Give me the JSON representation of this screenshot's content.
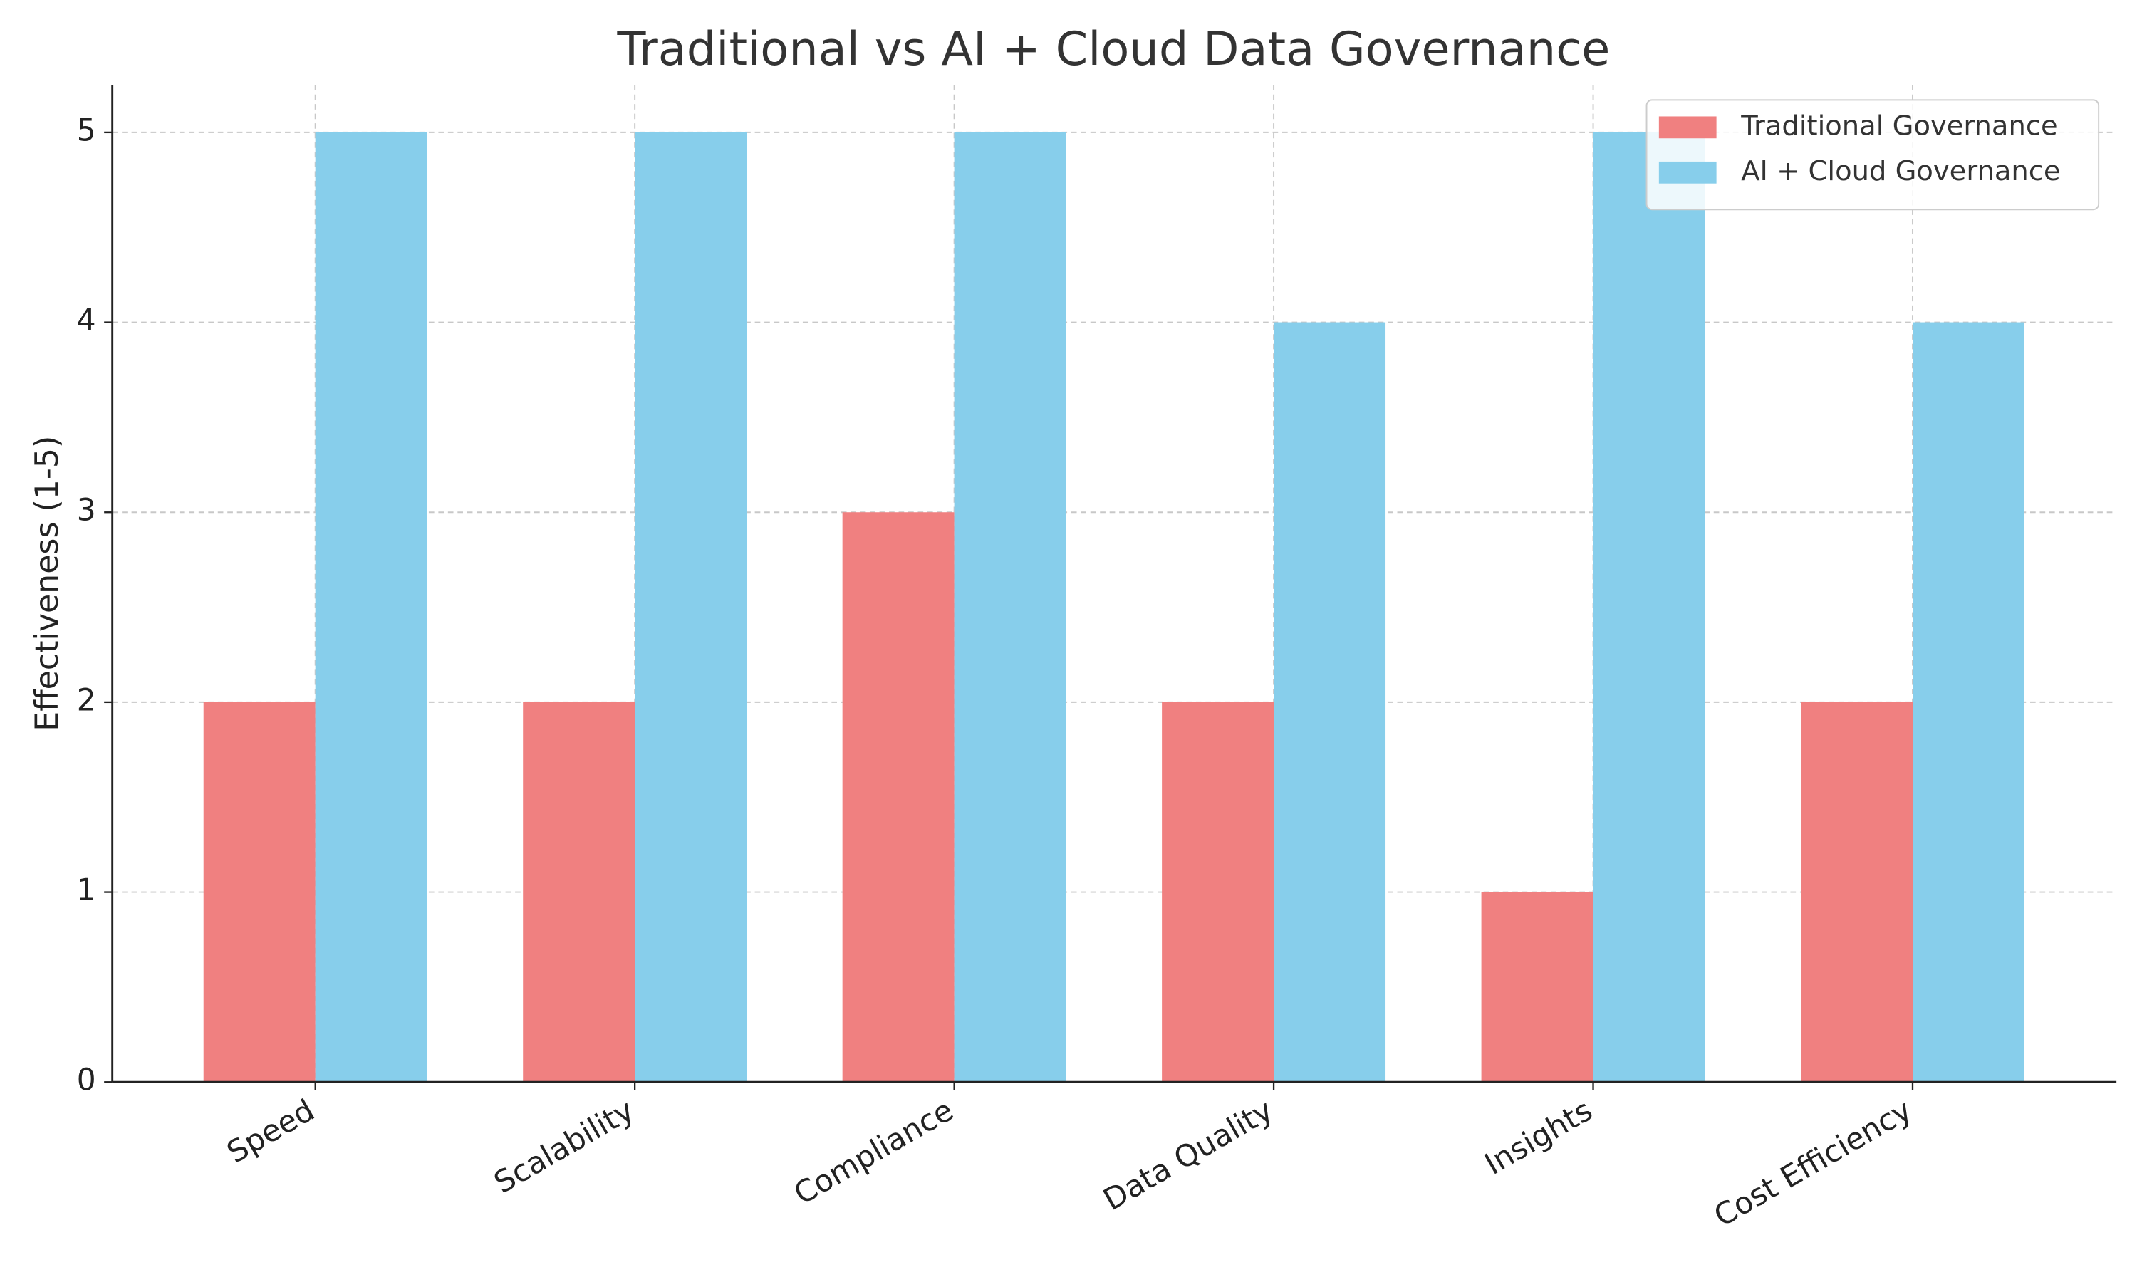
{
  "chart_data": {
    "type": "bar",
    "title": "Traditional vs AI + Cloud Data Governance",
    "y_label": "Effectiveness (1-5)",
    "categories": [
      "Speed",
      "Scalability",
      "Compliance",
      "Data Quality",
      "Insights",
      "Cost Efficiency"
    ],
    "series": [
      {
        "name": "Traditional Governance",
        "color": "#f08080",
        "values": [
          2,
          2,
          3,
          2,
          1,
          2
        ]
      },
      {
        "name": "AI + Cloud Governance",
        "color": "#87ceeb",
        "values": [
          5,
          5,
          5,
          4,
          5,
          4
        ]
      }
    ],
    "ylim": [
      0,
      5.25
    ],
    "yticks": [
      0,
      1,
      2,
      3,
      4,
      5
    ],
    "grid": true,
    "legend": "upper right"
  }
}
